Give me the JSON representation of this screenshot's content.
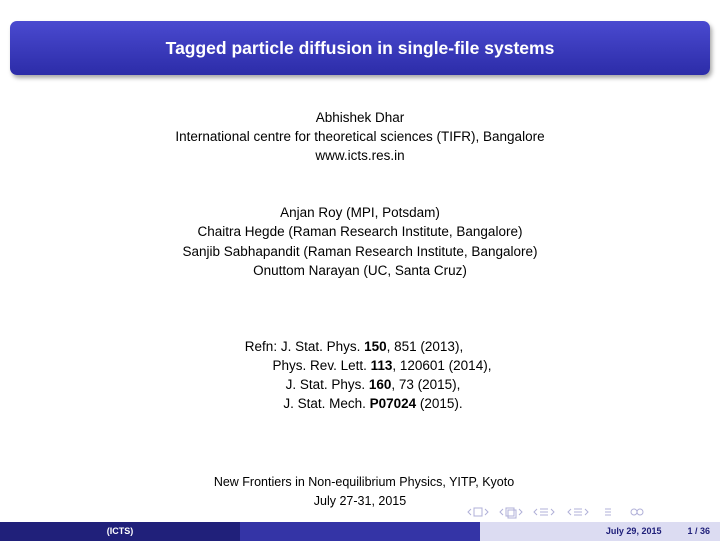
{
  "title": "Tagged particle diffusion in single-file systems",
  "author": {
    "name": "Abhishek Dhar",
    "affiliation": "International centre for theoretical sciences (TIFR), Bangalore",
    "url": "www.icts.res.in"
  },
  "collaborators": [
    "Anjan Roy (MPI, Potsdam)",
    "Chaitra Hegde (Raman Research Institute, Bangalore)",
    "Sanjib Sabhapandit (Raman Research Institute, Bangalore)",
    "Onuttom Narayan (UC, Santa Cruz)"
  ],
  "references": [
    {
      "prefix": "Refn: J. Stat. Phys. ",
      "bold": "150",
      "rest": ", 851 (2013),"
    },
    {
      "prefix": "Phys. Rev. Lett. ",
      "bold": "113",
      "rest": ", 120601 (2014),"
    },
    {
      "prefix": "J. Stat. Phys. ",
      "bold": "160",
      "rest": ", 73 (2015),"
    },
    {
      "prefix": "J. Stat. Mech. ",
      "bold": "P07024",
      "rest": " (2015)."
    }
  ],
  "conference": {
    "name": "New Frontiers in Non-equilibrium Physics, YITP, Kyoto",
    "dates": "July 27-31, 2015"
  },
  "footer": {
    "institute": "(ICTS)",
    "date": "July 29, 2015",
    "page": "1 / 36"
  }
}
